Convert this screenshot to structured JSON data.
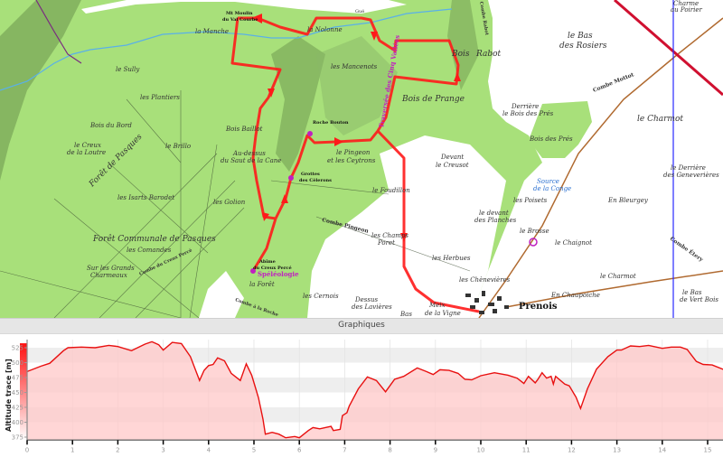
{
  "map": {
    "labels": [
      "la Manche",
      "les Mancenots",
      "Bois de Prange",
      "Bois",
      "Rabot",
      "le Bas",
      "des Rosiers",
      "le Sully",
      "les Plantiers",
      "Bois du Bord",
      "Forêt Communale de Pasques",
      "les Comandes",
      "le Creux",
      "de la Loutre",
      "le Brillo",
      "les Isarts Barodet",
      "Sur les Grands",
      "Charmeaux",
      "Bois Baillot",
      "Au-dessus",
      "du Saut de la Cane",
      "les Golion",
      "Grottes",
      "des Cèlerons",
      "Roche Bouton",
      "le Pingeon",
      "et les Ceytrons",
      "Devant",
      "le Creusot",
      "le Foudillon",
      "les Champs",
      "Poret",
      "Combe Pingeon",
      "les Herbues",
      "les Cernois",
      "Dessus",
      "des Lavières",
      "les Chènevières",
      "Prenois",
      "le devant",
      "des Planches",
      "les Poisets",
      "Bois des Prés",
      "Derrière",
      "le Bois des Prés",
      "le Charmot",
      "le Derrière",
      "des Geneverières",
      "En Bleurgey",
      "le Chaignot",
      "le Charmot",
      "En Chaupoiche",
      "Combe Mottot",
      "Combe Étery",
      "Abîme",
      "du Creux Percé",
      "Spéléologie",
      "la Forêt",
      "Traversée des Cinq Vallées",
      "la Nolonne",
      "Mt Moulin",
      "du Val Courbe",
      "Charme",
      "au Poirier",
      "le Bas",
      "de Vert Bois",
      "Source",
      "de la Conge",
      "Forêt de Pasques",
      "Combe à la Roche",
      "Combe du Creux Percé",
      "Gué",
      "Meix",
      "de la Vigne",
      "Bas",
      "Combe Rabot",
      "le Brosse"
    ],
    "colors": {
      "forest": "#a8e07a",
      "open": "#ffffff",
      "route": "#ff1a1a",
      "river": "#5ab0e8",
      "grid_line": "#2a2aff"
    }
  },
  "panel": {
    "title": "Graphiques"
  },
  "chart_data": {
    "type": "area",
    "ylabel": "Altitude trace [m]",
    "xlim": [
      0,
      15.4
    ],
    "ylim": [
      370,
      537
    ],
    "xticks": [
      0,
      1,
      2,
      3,
      4,
      5,
      6,
      7,
      8,
      9,
      10,
      11,
      12,
      13,
      14,
      15
    ],
    "yticks": [
      375,
      400,
      425,
      450,
      475,
      500,
      525
    ],
    "grid": true,
    "line_color": "#e81010",
    "fill_color": "#ffc8c8",
    "x": [
      0,
      0.3,
      0.5,
      0.8,
      0.9,
      1.2,
      1.5,
      1.8,
      2.0,
      2.3,
      2.6,
      2.75,
      2.9,
      3.0,
      3.2,
      3.4,
      3.6,
      3.8,
      3.9,
      4.0,
      4.1,
      4.2,
      4.35,
      4.5,
      4.7,
      4.83,
      4.95,
      5.1,
      5.2,
      5.25,
      5.4,
      5.55,
      5.7,
      5.9,
      6.0,
      6.2,
      6.3,
      6.45,
      6.7,
      6.75,
      6.9,
      6.95,
      7.05,
      7.1,
      7.3,
      7.5,
      7.7,
      7.9,
      8.1,
      8.3,
      8.6,
      8.8,
      8.95,
      9.1,
      9.3,
      9.5,
      9.65,
      9.8,
      10.0,
      10.3,
      10.6,
      10.8,
      10.95,
      11.05,
      11.2,
      11.25,
      11.35,
      11.45,
      11.55,
      11.6,
      11.65,
      11.85,
      11.95,
      12.1,
      12.2,
      12.35,
      12.55,
      12.8,
      13.0,
      13.1,
      13.3,
      13.5,
      13.7,
      14.0,
      14.2,
      14.4,
      14.55,
      14.75,
      14.9,
      15.1,
      15.4
    ],
    "y": [
      485,
      494,
      499,
      520,
      525,
      526,
      525,
      529,
      527,
      520,
      531,
      535,
      530,
      521,
      534,
      532,
      510,
      470,
      487,
      495,
      497,
      508,
      503,
      482,
      470,
      498,
      479,
      441,
      405,
      380,
      383,
      380,
      374,
      376,
      374,
      386,
      391,
      389,
      393,
      386,
      388,
      411,
      416,
      427,
      456,
      476,
      470,
      451,
      472,
      477,
      491,
      485,
      480,
      488,
      487,
      482,
      472,
      471,
      478,
      483,
      479,
      474,
      465,
      477,
      466,
      471,
      483,
      474,
      477,
      464,
      477,
      464,
      461,
      442,
      423,
      456,
      489,
      510,
      521,
      521,
      528,
      527,
      529,
      524,
      526,
      526,
      522,
      502,
      497,
      496,
      487
    ]
  }
}
